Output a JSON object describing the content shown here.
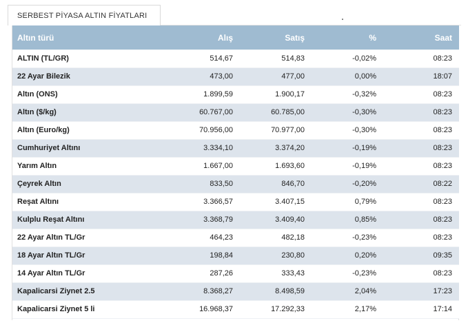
{
  "tab": {
    "title": "SERBEST PİYASA ALTIN FİYATLARI"
  },
  "colors": {
    "header_bg": "#9fbbd1",
    "row_alt_bg": "#dde4ec",
    "header_text": "#ffffff"
  },
  "table": {
    "headers": [
      "Altın türü",
      "Alış",
      "Satış",
      "%",
      "Saat"
    ],
    "rows": [
      [
        "ALTIN (TL/GR)",
        "514,67",
        "514,83",
        "-0,02%",
        "08:23"
      ],
      [
        "22 Ayar Bilezik",
        "473,00",
        "477,00",
        "0,00%",
        "18:07"
      ],
      [
        "Altın (ONS)",
        "1.899,59",
        "1.900,17",
        "-0,32%",
        "08:23"
      ],
      [
        "Altın ($/kg)",
        "60.767,00",
        "60.785,00",
        "-0,30%",
        "08:23"
      ],
      [
        "Altın (Euro/kg)",
        "70.956,00",
        "70.977,00",
        "-0,30%",
        "08:23"
      ],
      [
        "Cumhuriyet Altını",
        "3.334,10",
        "3.374,20",
        "-0,19%",
        "08:23"
      ],
      [
        "Yarım Altın",
        "1.667,00",
        "1.693,60",
        "-0,19%",
        "08:23"
      ],
      [
        "Çeyrek Altın",
        "833,50",
        "846,70",
        "-0,20%",
        "08:22"
      ],
      [
        "Reşat Altını",
        "3.366,57",
        "3.407,15",
        "0,79%",
        "08:23"
      ],
      [
        "Kulplu Reşat Altını",
        "3.368,79",
        "3.409,40",
        "0,85%",
        "08:23"
      ],
      [
        "22 Ayar Altın TL/Gr",
        "464,23",
        "482,18",
        "-0,23%",
        "08:23"
      ],
      [
        "18 Ayar Altın TL/Gr",
        "198,84",
        "230,80",
        "0,20%",
        "09:35"
      ],
      [
        "14 Ayar Altın TL/Gr",
        "287,26",
        "333,43",
        "-0,23%",
        "08:23"
      ],
      [
        "Kapalicarsi Ziynet 2.5",
        "8.368,27",
        "8.498,59",
        "2,04%",
        "17:23"
      ],
      [
        "Kapalicarsi Ziynet 5 li",
        "16.968,37",
        "17.292,33",
        "2,17%",
        "17:14"
      ]
    ]
  }
}
